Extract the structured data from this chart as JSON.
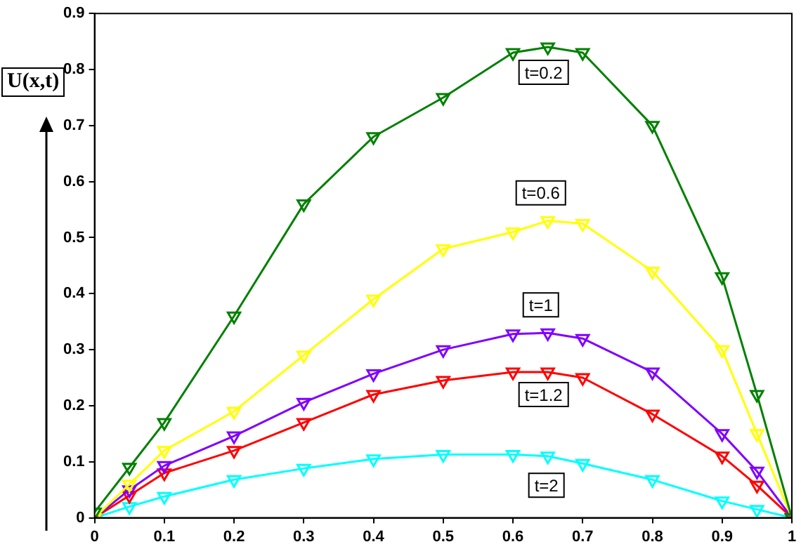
{
  "chart_data": {
    "type": "line",
    "ylabel": "U(x,t)",
    "x": [
      0,
      0.05,
      0.1,
      0.2,
      0.3,
      0.4,
      0.5,
      0.6,
      0.65,
      0.7,
      0.8,
      0.9,
      0.95,
      1
    ],
    "series": [
      {
        "color": "#008000",
        "values": [
          0.01,
          0.09,
          0.17,
          0.36,
          0.56,
          0.68,
          0.75,
          0.83,
          0.84,
          0.83,
          0.7,
          0.43,
          0.22,
          0
        ]
      },
      {
        "color": "#ffff00",
        "values": [
          0,
          0.06,
          0.12,
          0.19,
          0.29,
          0.39,
          0.48,
          0.51,
          0.53,
          0.525,
          0.44,
          0.3,
          0.15,
          0
        ]
      },
      {
        "color": "#8000ff",
        "values": [
          0,
          0.05,
          0.093,
          0.146,
          0.206,
          0.257,
          0.3,
          0.328,
          0.33,
          0.32,
          0.26,
          0.15,
          0.083,
          0
        ]
      },
      {
        "color": "#ff0000",
        "values": [
          0,
          0.04,
          0.08,
          0.12,
          0.17,
          0.22,
          0.245,
          0.26,
          0.26,
          0.25,
          0.185,
          0.11,
          0.058,
          0
        ]
      },
      {
        "color": "#00ffff",
        "values": [
          0,
          0.02,
          0.038,
          0.068,
          0.088,
          0.105,
          0.113,
          0.113,
          0.11,
          0.097,
          0.068,
          0.03,
          0.015,
          0
        ]
      }
    ],
    "xlim": [
      0,
      1
    ],
    "xticks": [
      0,
      0.1,
      0.2,
      0.3,
      0.4,
      0.5,
      0.6,
      0.7,
      0.8,
      0.9,
      1
    ],
    "ylim": [
      0,
      0.9
    ],
    "yticks": [
      0,
      0.1,
      0.2,
      0.3,
      0.4,
      0.5,
      0.6,
      0.7,
      0.8,
      0.9
    ],
    "grid": false,
    "legend": false,
    "marker": "triangle",
    "line_style": "solid",
    "annotations": [
      {
        "text": "t=0.2",
        "x": 0.644,
        "y": 0.795
      },
      {
        "text": "t=0.6",
        "x": 0.64,
        "y": 0.58
      },
      {
        "text": "t=1",
        "x": 0.64,
        "y": 0.38
      },
      {
        "text": "t=1.2",
        "x": 0.644,
        "y": 0.22
      },
      {
        "text": "t=2",
        "x": 0.648,
        "y": 0.058
      }
    ]
  }
}
